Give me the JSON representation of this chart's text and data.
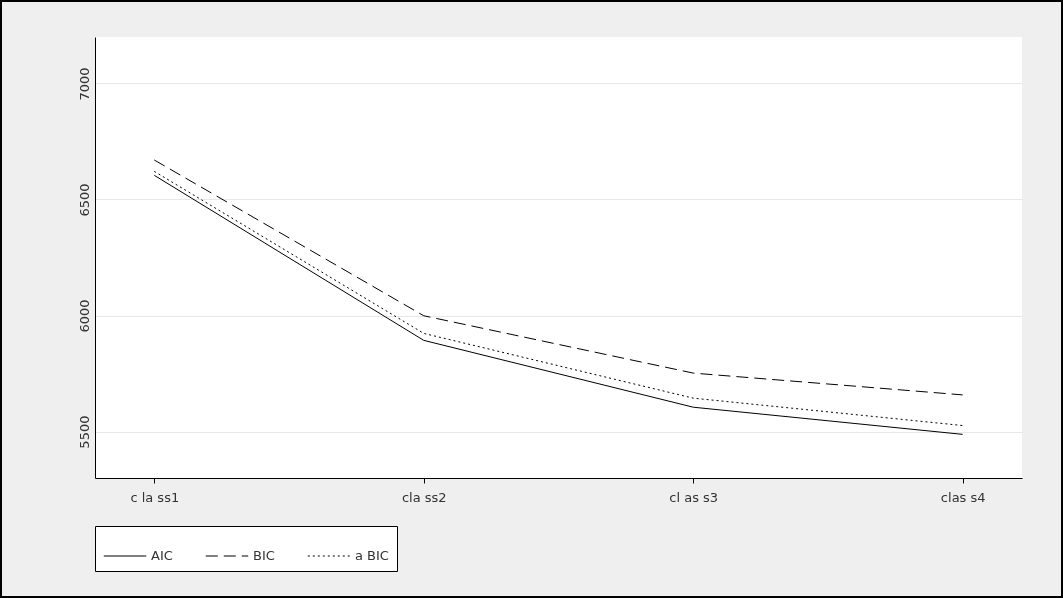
{
  "chart_data": {
    "type": "line",
    "categories": [
      "c la ss1",
      "cla ss2",
      "cl as s3",
      "clas s4"
    ],
    "ylim": [
      5300,
      7200
    ],
    "yticks": [
      {
        "value": 5500,
        "label": "5500"
      },
      {
        "value": 6000,
        "label": "6000"
      },
      {
        "value": 6500,
        "label": "6500"
      },
      {
        "value": 7000,
        "label": "7000"
      }
    ],
    "grid": "y",
    "legend": "bottom",
    "marker": "none",
    "series": [
      {
        "name": "AIC",
        "color": "#000000",
        "line_style": "solid",
        "values": [
          6604,
          5893,
          5605,
          5488
        ]
      },
      {
        "name": "BIC",
        "color": "#000000",
        "line_style": "dashed",
        "values": [
          6670,
          5999,
          5752,
          5658
        ]
      },
      {
        "name": "a BIC",
        "color": "#000000",
        "line_style": "dotted",
        "values": [
          6621,
          5923,
          5644,
          5526
        ]
      }
    ]
  }
}
